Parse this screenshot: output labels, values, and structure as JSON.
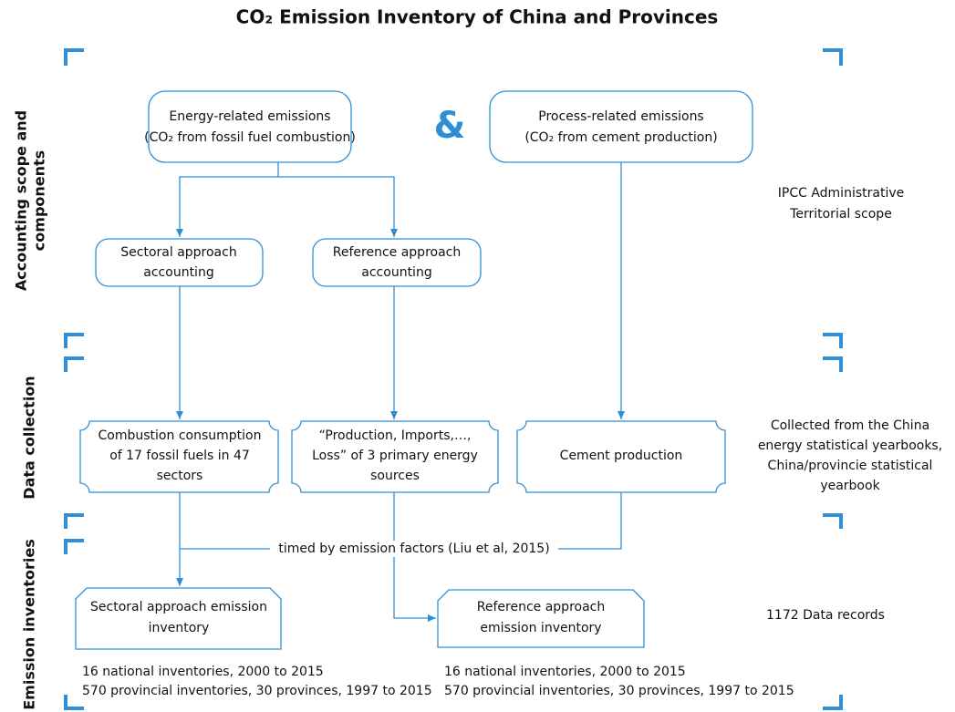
{
  "title": "CO₂ Emission Inventory of China and Provinces",
  "sections": [
    [
      "Accounting scope and",
      "components"
    ],
    [
      "Data collection"
    ],
    [
      "Emission inventories"
    ]
  ],
  "nodes": [
    {
      "lines": [
        "Energy-related emissions",
        "(CO₂ from fossil fuel combustion)"
      ]
    },
    {
      "lines": [
        "&"
      ]
    },
    {
      "lines": [
        "Process-related emissions",
        "(CO₂ from cement production)"
      ]
    },
    {
      "lines": [
        "Sectoral approach",
        "accounting"
      ]
    },
    {
      "lines": [
        "Reference approach",
        "accounting"
      ]
    },
    {
      "lines": [
        "Combustion consumption",
        "of 17 fossil fuels in 47",
        "sectors"
      ]
    },
    {
      "lines": [
        "“Production, Imports,…,",
        "Loss” of 3 primary energy",
        "sources"
      ]
    },
    {
      "lines": [
        "Cement production"
      ]
    },
    {
      "lines": [
        "Sectoral approach emission",
        "inventory"
      ]
    },
    {
      "lines": [
        "Reference approach",
        "emission inventory"
      ]
    }
  ],
  "edge_label": "timed by emission factors (Liu et al, 2015)",
  "notes": [
    [
      "IPCC Administrative",
      "Territorial scope"
    ],
    [
      "Collected from the China",
      "energy statistical yearbooks,",
      "China/provincie statistical",
      "yearbook"
    ],
    [
      "1172 Data records"
    ]
  ],
  "footnotes": [
    [
      "16 national inventories, 2000 to 2015",
      "570 provincial inventories, 30 provinces, 1997 to 2015"
    ],
    [
      "16 national inventories, 2000 to 2015",
      "570 provincial inventories, 30 provinces, 1997 to 2015"
    ]
  ]
}
